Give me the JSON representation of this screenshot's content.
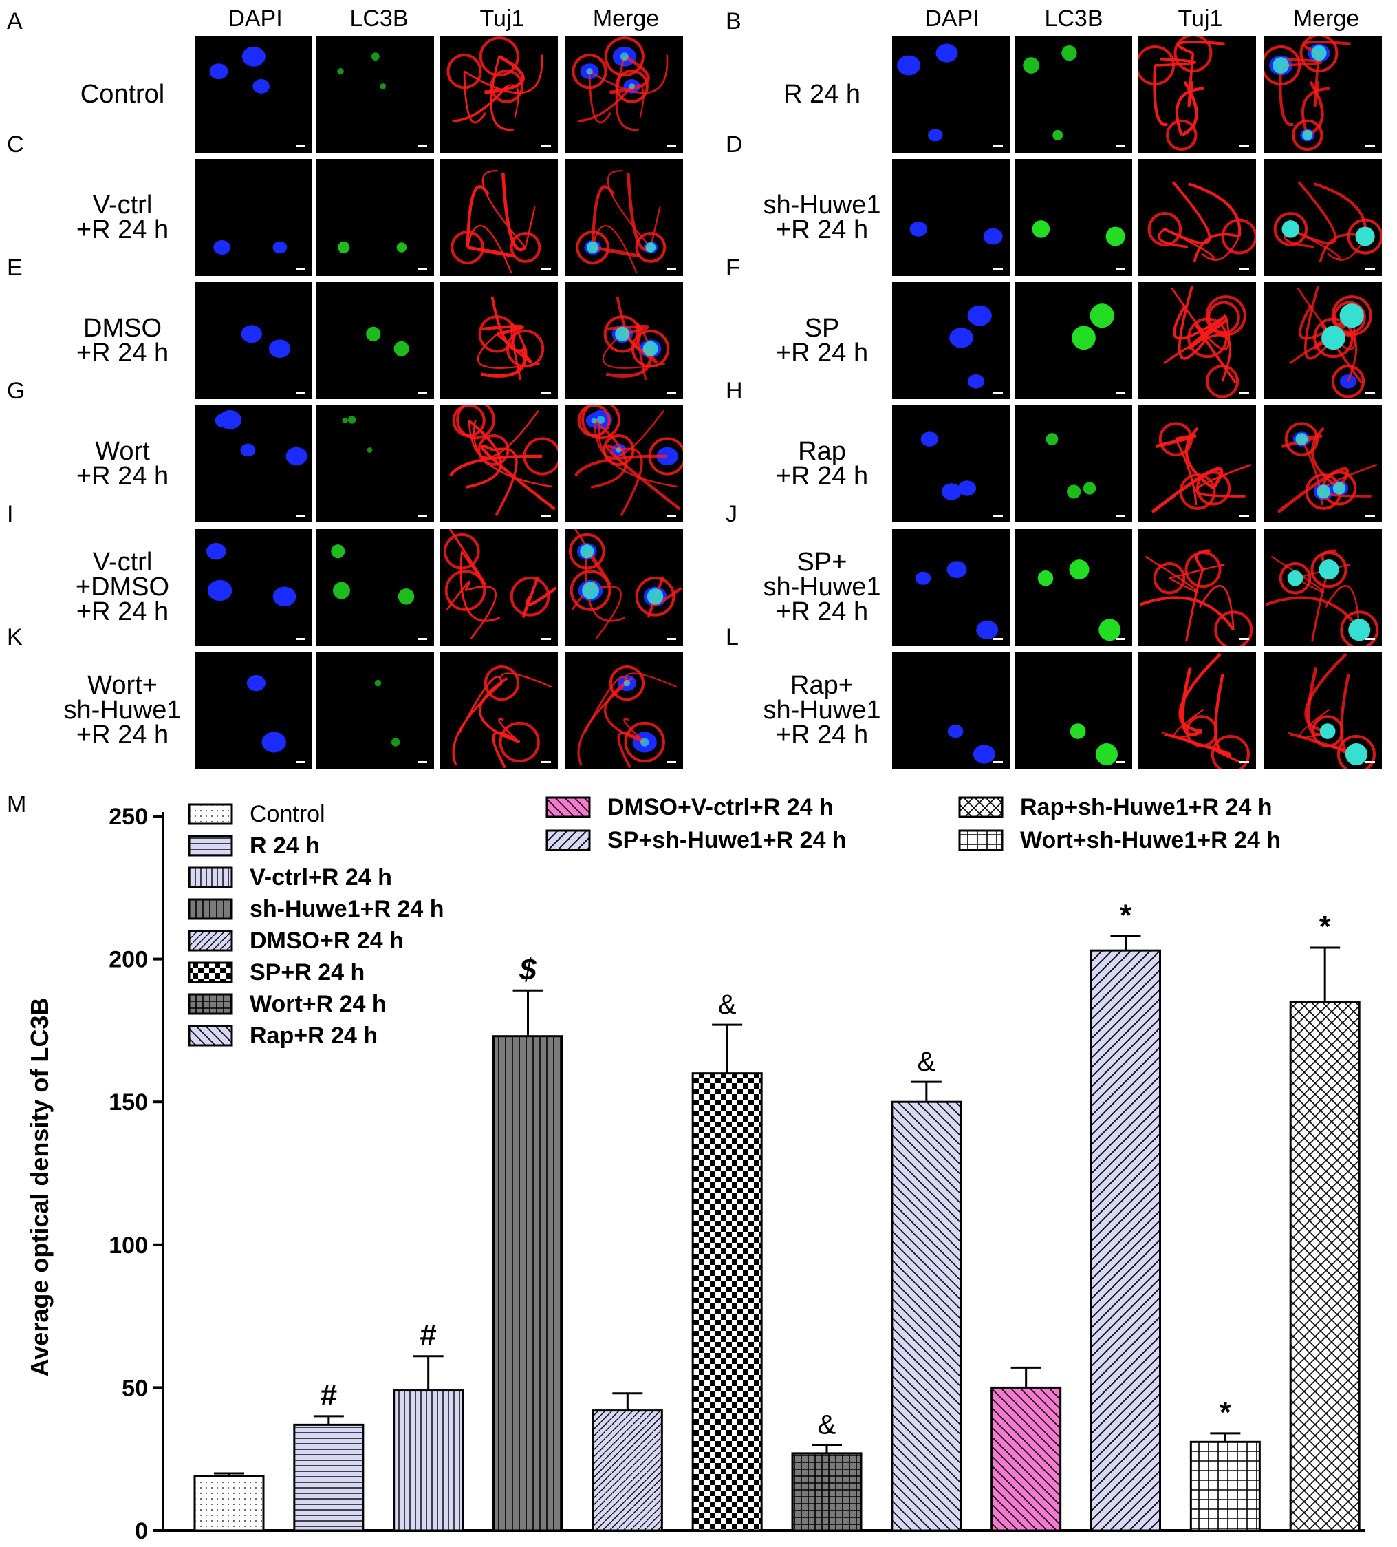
{
  "micro": {
    "columns": [
      "DAPI",
      "LC3B",
      "Tuj1",
      "Merge"
    ],
    "panels": [
      {
        "letter": "A",
        "label": [
          "Control"
        ]
      },
      {
        "letter": "B",
        "label": [
          "R 24 h"
        ]
      },
      {
        "letter": "C",
        "label": [
          "V-ctrl",
          "+R 24 h"
        ]
      },
      {
        "letter": "D",
        "label": [
          "sh-Huwe1",
          "+R 24 h"
        ]
      },
      {
        "letter": "E",
        "label": [
          "DMSO",
          "+R 24 h"
        ]
      },
      {
        "letter": "F",
        "label": [
          "SP",
          "+R 24 h"
        ]
      },
      {
        "letter": "G",
        "label": [
          "Wort",
          "+R 24 h"
        ]
      },
      {
        "letter": "H",
        "label": [
          "Rap",
          "+R 24 h"
        ]
      },
      {
        "letter": "I",
        "label": [
          "V-ctrl",
          "+DMSO",
          "+R 24 h"
        ]
      },
      {
        "letter": "J",
        "label": [
          "SP+",
          "sh-Huwe1",
          "+R 24 h"
        ]
      },
      {
        "letter": "K",
        "label": [
          "Wort+",
          "sh-Huwe1",
          "+R 24 h"
        ]
      },
      {
        "letter": "L",
        "label": [
          "Rap+",
          "sh-Huwe1",
          "+R 24 h"
        ]
      }
    ],
    "colors": {
      "dapi": "#1a2cff",
      "lc3b": "#22dd22",
      "tuj1": "#ff1a1a",
      "merge_overlap": "#35e0d0",
      "yellow": "#f0c020"
    }
  },
  "chart_data": {
    "type": "bar",
    "panel_letter": "M",
    "ylabel": "Average optical density of LC3B",
    "ylim": [
      0,
      250
    ],
    "yticks": [
      "0",
      "50",
      "100",
      "150",
      "200",
      "250"
    ],
    "categories": [
      "Control",
      "R 24 h",
      "V-ctrl+R 24 h",
      "sh-Huwe1+R 24 h",
      "DMSO+R 24 h",
      "SP+R 24 h",
      "Wort+R 24 h",
      "Rap+R 24 h",
      "DMSO+V-ctrl+R 24 h",
      "SP+sh-Huwe1+R 24 h",
      "Wort+sh-Huwe1+R 24 h",
      "Rap+sh-Huwe1+R 24 h"
    ],
    "values": [
      19,
      37,
      49,
      173,
      42,
      160,
      27,
      150,
      50,
      203,
      31,
      185
    ],
    "errors": [
      1,
      3,
      12,
      16,
      6,
      17,
      3,
      7,
      7,
      5,
      3,
      19
    ],
    "annotations": [
      "",
      "#",
      "#",
      "$",
      "",
      "&",
      "&",
      "&",
      "",
      "*",
      "*",
      "*"
    ],
    "legend": [
      "Control",
      "R 24 h",
      "V-ctrl+R 24 h",
      "sh-Huwe1+R 24 h",
      "DMSO+R 24 h",
      "SP+R 24 h",
      "Wort+R 24 h",
      "Rap+R 24 h",
      "DMSO+V-ctrl+R 24 h",
      "SP+sh-Huwe1+R 24 h",
      "Rap+sh-Huwe1+R 24 h",
      "Wort+sh-Huwe1+R 24 h"
    ],
    "colors": {
      "lavender": "#d8d8f4",
      "pink": "#f47ad0",
      "gray": "#7a7a7a",
      "white": "#ffffff"
    }
  }
}
